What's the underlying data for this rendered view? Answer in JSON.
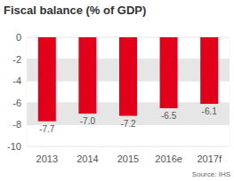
{
  "chart_data": {
    "type": "bar",
    "title": "Fiscal balance (% of GDP)",
    "categories": [
      "2013",
      "2014",
      "2015",
      "2016e",
      "2017f"
    ],
    "values": [
      -7.7,
      -7.0,
      -7.2,
      -6.5,
      -6.1
    ],
    "value_labels": [
      "-7.7",
      "-7.0",
      "-7.2",
      "-6.5",
      "-6.1"
    ],
    "color": "#e2001a",
    "ylim": [
      -10,
      0
    ],
    "yticks": [
      0,
      -2,
      -4,
      -6,
      -8,
      -10
    ],
    "grid": true,
    "data_labels": true,
    "source": "Source: IHS"
  }
}
